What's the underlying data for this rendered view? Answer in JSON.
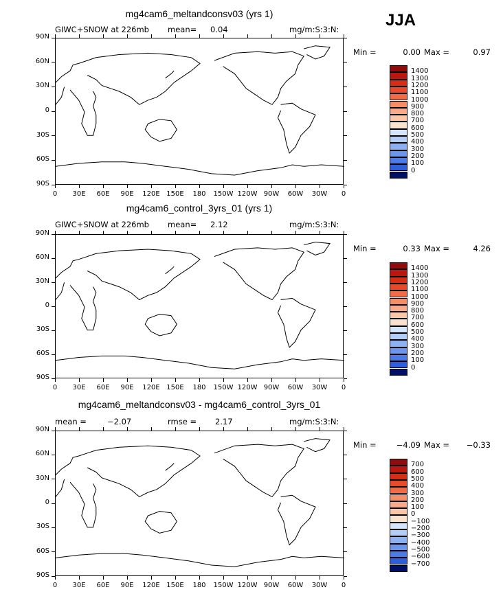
{
  "season": "JJA",
  "colors": {
    "positive": [
      "#f9e3ce",
      "#fbc7a8",
      "#f9a98a",
      "#f58d68",
      "#f06c47",
      "#e84a2c",
      "#d62d17",
      "#b8180f",
      "#8e0c0c"
    ],
    "negative": [
      "#d5e5fb",
      "#b3cdf5",
      "#8eb2f1",
      "#6b96ec",
      "#4c7be6",
      "#2f5fdd",
      "#1c45cc",
      "#0d2fb3",
      "#071c8a",
      "#020f66"
    ]
  },
  "panels": [
    {
      "title": "mg4cam6_meltandconsv03 (yrs 1)",
      "left_text": "GIWC+SNOW  at  226mb",
      "stat1_label": "mean=",
      "stat1_value": "0.04",
      "stat2_label": "",
      "stat2_value": "",
      "units": "mg/m:S:3:N:",
      "min_label": "Min  =",
      "min_value": "0.00",
      "max_label": "Max  =",
      "max_value": "0.97",
      "levels": [
        "1400",
        "1300",
        "1200",
        "1100",
        "1000",
        "900",
        "800",
        "700",
        "600",
        "500",
        "400",
        "300",
        "200",
        "100",
        "0"
      ]
    },
    {
      "title": "mg4cam6_control_3yrs_01 (yrs 1)",
      "left_text": "GIWC+SNOW  at  226mb",
      "stat1_label": "mean=",
      "stat1_value": "2.12",
      "stat2_label": "",
      "stat2_value": "",
      "units": "mg/m:S:3:N:",
      "min_label": "Min  =",
      "min_value": "0.33",
      "max_label": "Max  =",
      "max_value": "4.26",
      "levels": [
        "1400",
        "1300",
        "1200",
        "1100",
        "1000",
        "900",
        "800",
        "700",
        "600",
        "500",
        "400",
        "300",
        "200",
        "100",
        "0"
      ]
    },
    {
      "title": "mg4cam6_meltandconsv03 - mg4cam6_control_3yrs_01",
      "left_text": "",
      "stat1_label": "mean  =",
      "stat1_value": "−2.07",
      "stat2_label": "rmse  =",
      "stat2_value": "2.17",
      "units": "mg/m:S:3:N:",
      "min_label": "Min  =",
      "min_value": "−4.09",
      "max_label": "Max  =",
      "max_value": "−0.33",
      "levels": [
        "700",
        "600",
        "500",
        "400",
        "300",
        "200",
        "100",
        "0",
        "−100",
        "−200",
        "−300",
        "−400",
        "−500",
        "−600",
        "−700"
      ]
    }
  ],
  "lat_labels": [
    "90N",
    "60N",
    "30N",
    "0",
    "30S",
    "60S",
    "90S"
  ],
  "lon_labels": [
    "0",
    "30E",
    "60E",
    "90E",
    "120E",
    "150E",
    "180",
    "150W",
    "120W",
    "90W",
    "60W",
    "30W",
    "0"
  ]
}
